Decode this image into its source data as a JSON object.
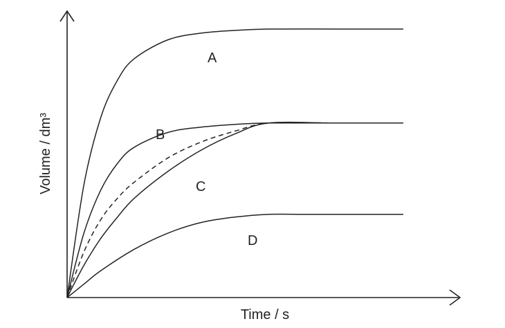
{
  "chart_data": {
    "type": "line",
    "title": "",
    "xlabel": "Time / s",
    "ylabel": "Volume / dm³",
    "xlim": [
      0,
      1
    ],
    "ylim": [
      0,
      1
    ],
    "ticks": "none",
    "grid": false,
    "legend": "none",
    "series": [
      {
        "name": "A",
        "style": "solid",
        "x": [
          0,
          0.05,
          0.1,
          0.15,
          0.2,
          0.3,
          0.4,
          0.5,
          0.6,
          0.8,
          1.0
        ],
        "y": [
          0,
          0.42,
          0.67,
          0.81,
          0.89,
          0.96,
          0.985,
          0.995,
          1.0,
          1.0,
          1.0
        ]
      },
      {
        "name": "B",
        "style": "solid",
        "x": [
          0,
          0.05,
          0.1,
          0.15,
          0.2,
          0.3,
          0.4,
          0.5,
          0.6,
          0.8,
          1.0
        ],
        "y": [
          0,
          0.24,
          0.4,
          0.5,
          0.56,
          0.615,
          0.635,
          0.645,
          0.65,
          0.65,
          0.65
        ]
      },
      {
        "name": "",
        "style": "dashed",
        "x": [
          0,
          0.05,
          0.1,
          0.15,
          0.2,
          0.3,
          0.4,
          0.5,
          0.6,
          0.8,
          1.0
        ],
        "y": [
          0,
          0.17,
          0.29,
          0.37,
          0.43,
          0.52,
          0.58,
          0.62,
          0.65,
          0.65,
          0.65
        ]
      },
      {
        "name": "C",
        "style": "solid",
        "x": [
          0,
          0.05,
          0.1,
          0.15,
          0.2,
          0.3,
          0.4,
          0.5,
          0.6,
          0.8,
          1.0
        ],
        "y": [
          0,
          0.12,
          0.22,
          0.3,
          0.37,
          0.47,
          0.55,
          0.61,
          0.65,
          0.65,
          0.65
        ]
      },
      {
        "name": "D",
        "style": "solid",
        "x": [
          0,
          0.05,
          0.1,
          0.2,
          0.3,
          0.4,
          0.5,
          0.6,
          0.7,
          0.8,
          1.0
        ],
        "y": [
          0,
          0.05,
          0.1,
          0.18,
          0.24,
          0.28,
          0.3,
          0.31,
          0.31,
          0.31,
          0.31
        ]
      }
    ]
  }
}
